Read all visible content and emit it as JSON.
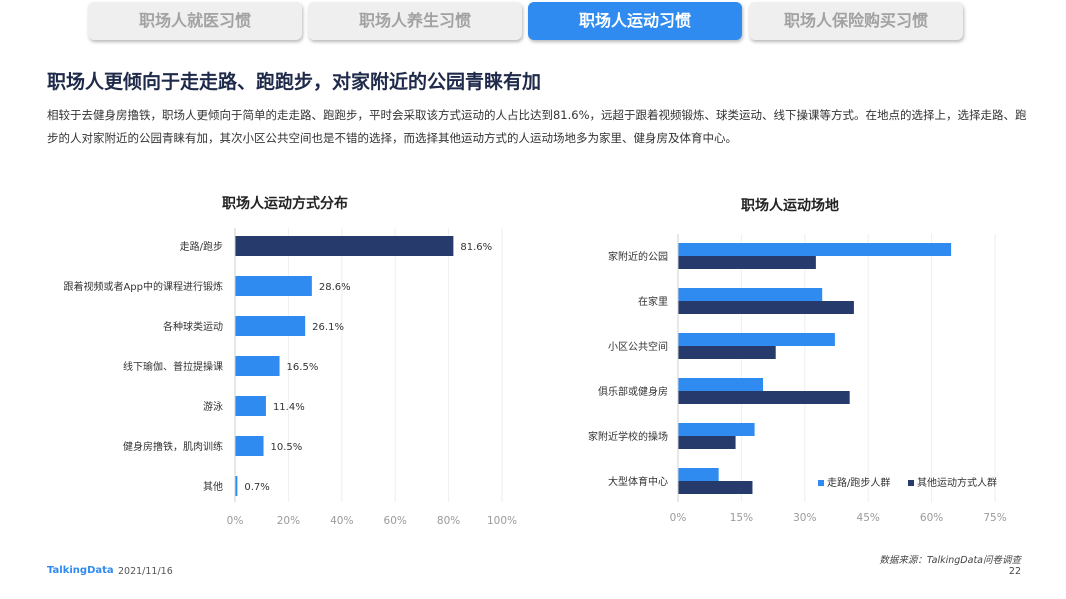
{
  "tabs": [
    {
      "label": "职场人就医习惯",
      "active": false
    },
    {
      "label": "职场人养生习惯",
      "active": false
    },
    {
      "label": "职场人运动习惯",
      "active": true
    },
    {
      "label": "职场人保险购买习惯",
      "active": false
    }
  ],
  "page_title": "职场人更倾向于走走路、跑跑步，对家附近的公园青睐有加",
  "description": "相较于去健身房撸铁，职场人更倾向于简单的走走路、跑跑步，平时会采取该方式运动的人占比达到81.6%，远超于跟着视频锻炼、球类运动、线下操课等方式。在地点的选择上，选择走路、跑步的人对家附近的公园青睐有加，其次小区公共空间也是不错的选择，而选择其他运动方式的人运动场地多为家里、健身房及体育中心。",
  "colors": {
    "dark": "#263a6b",
    "blue": "#2f8bf0",
    "axis_text": "#9a9a9a"
  },
  "chart_data": [
    {
      "type": "bar",
      "orientation": "horizontal",
      "title": "职场人运动方式分布",
      "categories": [
        "走路/跑步",
        "跟着视频或者App中的课程进行锻炼",
        "各种球类运动",
        "线下瑜伽、普拉提操课",
        "游泳",
        "健身房撸铁，肌肉训练",
        "其他"
      ],
      "values": [
        81.6,
        28.6,
        26.1,
        16.5,
        11.4,
        10.5,
        0.7
      ],
      "value_labels": [
        "81.6%",
        "28.6%",
        "26.1%",
        "16.5%",
        "11.4%",
        "10.5%",
        "0.7%"
      ],
      "bar_colors": [
        "#263a6b",
        "#2f8bf0",
        "#2f8bf0",
        "#2f8bf0",
        "#2f8bf0",
        "#2f8bf0",
        "#2f8bf0"
      ],
      "xlim": [
        0,
        100
      ],
      "xticks": [
        "0%",
        "20%",
        "40%",
        "60%",
        "80%",
        "100%"
      ],
      "grid": true
    },
    {
      "type": "bar",
      "orientation": "horizontal",
      "title": "职场人运动场地",
      "categories": [
        "家附近的公园",
        "在家里",
        "小区公共空间",
        "俱乐部或健身房",
        "家附近学校的操场",
        "大型体育中心"
      ],
      "series": [
        {
          "name": "走路/跑步人群",
          "color": "#2f8bf0",
          "values": [
            64.5,
            34,
            37,
            20,
            18,
            9.5
          ]
        },
        {
          "name": "其他运动方式人群",
          "color": "#263a6b",
          "values": [
            32.5,
            41.5,
            23,
            40.5,
            13.5,
            17.5
          ]
        }
      ],
      "xlim": [
        0,
        75
      ],
      "xticks": [
        "0%",
        "15%",
        "30%",
        "45%",
        "60%",
        "75%"
      ],
      "legend": "bottom-right",
      "grid": true
    }
  ],
  "footer": {
    "logo": "TalkingData",
    "date": "2021/11/16",
    "source": "数据来源：TalkingData问卷调查",
    "page": "22"
  }
}
